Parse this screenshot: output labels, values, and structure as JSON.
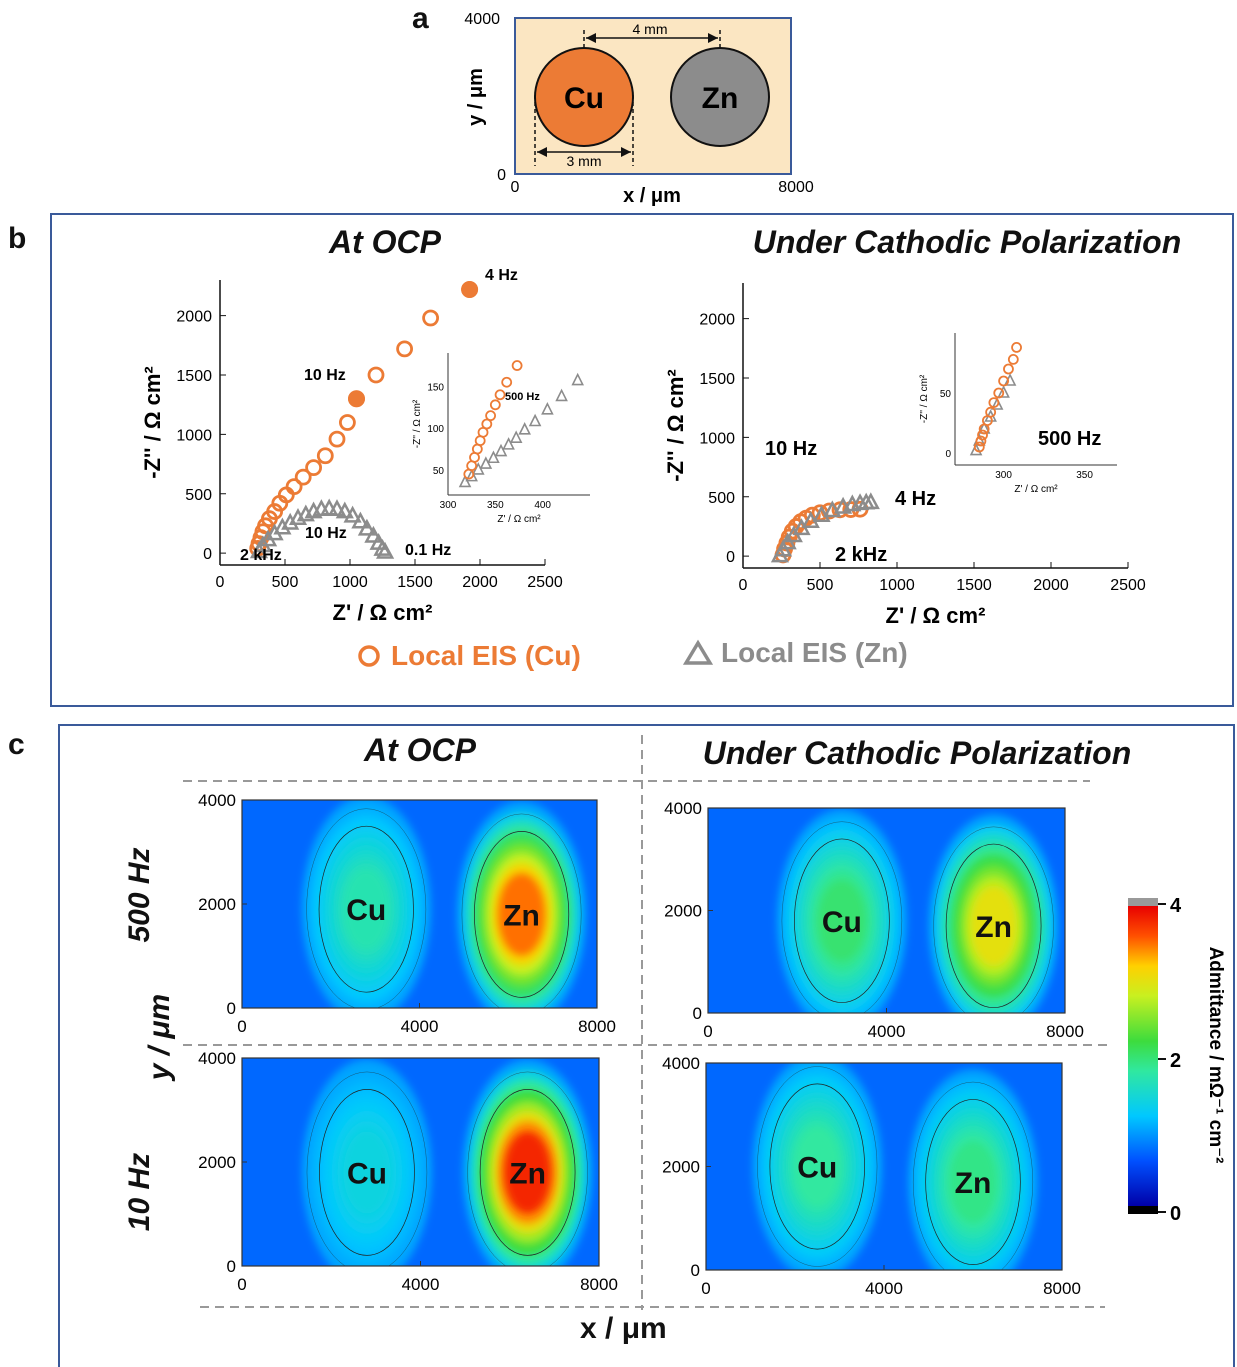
{
  "colors": {
    "cu": "#ec7b35",
    "zn": "#8c8c8c",
    "frame": "#3a5a9a",
    "schem_bg": "#fbe6c2"
  },
  "panel_a": {
    "letter": "a",
    "xlabel": "x / μm",
    "ylabel": "y / μm",
    "x_ticks": [
      "0",
      "8000"
    ],
    "y_ticks": [
      "0",
      "4000"
    ],
    "cu_label": "Cu",
    "zn_label": "Zn",
    "spacing_label": "4 mm",
    "diameter_label": "3 mm"
  },
  "panel_b": {
    "letter": "b",
    "left_title": "At OCP",
    "right_title": "Under Cathodic Polarization",
    "legend": [
      {
        "marker": "circle",
        "label": "Local EIS (Cu)"
      },
      {
        "marker": "triangle",
        "label": "Local EIS (Zn)"
      }
    ]
  },
  "panel_c": {
    "letter": "c",
    "left_title": "At OCP",
    "right_title": "Under Cathodic Polarization",
    "row_labels": [
      "500 Hz",
      "10 Hz"
    ],
    "ylabel": "y / μm",
    "xlabel": "x / μm",
    "colorbar_label": "Admittance / mΩ⁻¹ cm⁻²",
    "colorbar_ticks": [
      "4",
      "2",
      "0"
    ],
    "map_x_ticks": [
      "0",
      "4000",
      "8000"
    ],
    "map_y_ticks": [
      "0",
      "2000",
      "4000"
    ],
    "cu_label": "Cu",
    "zn_label": "Zn"
  },
  "chart_data": [
    {
      "type": "scatter",
      "panel": "b-left",
      "title": "At OCP",
      "xlabel": "Z' / Ω cm²",
      "ylabel": "-Z'' / Ω cm²",
      "xlim": [
        0,
        2500
      ],
      "ylim": [
        -100,
        2300
      ],
      "x_ticks": [
        0,
        500,
        1000,
        1500,
        2000,
        2500
      ],
      "y_ticks": [
        0,
        500,
        1000,
        1500,
        2000
      ],
      "series": [
        {
          "name": "Local EIS (Cu)",
          "marker": "circle",
          "x": [
            290,
            300,
            315,
            330,
            350,
            380,
            420,
            460,
            510,
            570,
            640,
            720,
            810,
            900,
            980,
            1050,
            1200,
            1420,
            1620,
            1920
          ],
          "y": [
            40,
            80,
            130,
            180,
            230,
            290,
            350,
            420,
            490,
            560,
            640,
            720,
            820,
            960,
            1100,
            1300,
            1500,
            1720,
            1980,
            2220
          ]
        },
        {
          "name": "Local EIS (Zn)",
          "marker": "triangle",
          "x": [
            300,
            330,
            370,
            420,
            480,
            540,
            600,
            660,
            720,
            780,
            840,
            900,
            960,
            1020,
            1080,
            1130,
            1180,
            1220,
            1250,
            1270
          ],
          "y": [
            10,
            60,
            110,
            160,
            210,
            250,
            290,
            320,
            345,
            365,
            370,
            365,
            345,
            310,
            260,
            200,
            140,
            80,
            30,
            5
          ]
        }
      ],
      "annotations": [
        "4 Hz",
        "10 Hz",
        "10 Hz",
        "2 kHz",
        "0.1 Hz"
      ],
      "highlight_points": [
        {
          "x": 1920,
          "y": 2220,
          "label": "4 Hz"
        },
        {
          "x": 1050,
          "y": 1300,
          "label": "10 Hz"
        }
      ],
      "inset": {
        "xlabel": "Z' / Ω cm²",
        "ylabel": "-Z'' / Ω cm²",
        "xlim": [
          300,
          450
        ],
        "ylim": [
          20,
          190
        ],
        "x_ticks": [
          300,
          350,
          400
        ],
        "y_ticks": [
          50,
          100,
          150
        ],
        "annotation": "500 Hz",
        "cu": {
          "x": [
            322,
            325,
            328,
            331,
            334,
            337,
            341,
            345,
            350,
            355,
            362,
            373
          ],
          "y": [
            45,
            55,
            65,
            75,
            85,
            95,
            105,
            115,
            128,
            140,
            155,
            175
          ]
        },
        "zn": {
          "x": [
            318,
            325,
            332,
            340,
            348,
            356,
            364,
            372,
            381,
            392,
            405,
            420,
            437
          ],
          "y": [
            35,
            42,
            50,
            57,
            64,
            72,
            80,
            88,
            98,
            108,
            122,
            138,
            157
          ]
        }
      }
    },
    {
      "type": "scatter",
      "panel": "b-right",
      "title": "Under Cathodic Polarization",
      "xlabel": "Z' / Ω cm²",
      "ylabel": "-Z'' / Ω cm²",
      "xlim": [
        0,
        2500
      ],
      "ylim": [
        -100,
        2300
      ],
      "x_ticks": [
        0,
        500,
        1000,
        1500,
        2000,
        2500
      ],
      "y_ticks": [
        0,
        500,
        1000,
        1500,
        2000
      ],
      "series": [
        {
          "name": "Local EIS (Cu)",
          "marker": "circle",
          "x": [
            260,
            270,
            285,
            300,
            320,
            345,
            375,
            410,
            450,
            500,
            560,
            630,
            700,
            760
          ],
          "y": [
            10,
            60,
            110,
            160,
            210,
            250,
            290,
            320,
            345,
            365,
            380,
            390,
            392,
            395
          ]
        },
        {
          "name": "Local EIS (Zn)",
          "marker": "triangle",
          "x": [
            240,
            260,
            290,
            330,
            380,
            440,
            510,
            580,
            650,
            710,
            760,
            800,
            830
          ],
          "y": [
            0,
            50,
            110,
            170,
            230,
            290,
            340,
            380,
            410,
            430,
            440,
            445,
            448
          ]
        }
      ],
      "annotations": [
        "10 Hz",
        "4 Hz",
        "2 kHz"
      ],
      "inset": {
        "xlabel": "Z' / Ω cm²",
        "ylabel": "-Z'' / Ω cm²",
        "xlim": [
          270,
          370
        ],
        "ylim": [
          -10,
          100
        ],
        "x_ticks": [
          300,
          350
        ],
        "y_ticks": [
          0,
          50
        ],
        "annotation": "500 Hz",
        "cu": {
          "x": [
            285,
            286,
            287,
            288,
            290,
            292,
            294,
            297,
            300,
            303,
            306,
            308
          ],
          "y": [
            5,
            10,
            15,
            20,
            27,
            34,
            42,
            50,
            60,
            70,
            78,
            88
          ]
        },
        "zn": {
          "x": [
            283,
            285,
            288,
            292,
            296,
            300,
            304
          ],
          "y": [
            2,
            10,
            20,
            30,
            40,
            50,
            60
          ]
        }
      }
    },
    {
      "type": "heatmap",
      "panel": "c",
      "xlabel": "x / μm",
      "ylabel": "y / μm",
      "xlim": [
        0,
        8000
      ],
      "ylim": [
        0,
        4000
      ],
      "colorbar": {
        "label": "Admittance / mΩ⁻¹ cm⁻²",
        "range": [
          0,
          4
        ],
        "ticks": [
          0,
          2,
          4
        ]
      },
      "maps": [
        {
          "condition": "At OCP",
          "frequency": "500 Hz",
          "peaks": [
            {
              "label": "Cu",
              "x": 2800,
              "y": 1900,
              "value": 1.7
            },
            {
              "label": "Zn",
              "x": 6300,
              "y": 1800,
              "value": 3.5
            }
          ]
        },
        {
          "condition": "Under Cathodic Polarization",
          "frequency": "500 Hz",
          "peaks": [
            {
              "label": "Cu",
              "x": 3000,
              "y": 1800,
              "value": 2.0
            },
            {
              "label": "Zn",
              "x": 6400,
              "y": 1700,
              "value": 3.0
            }
          ]
        },
        {
          "condition": "At OCP",
          "frequency": "10 Hz",
          "peaks": [
            {
              "label": "Cu",
              "x": 2800,
              "y": 1800,
              "value": 1.4
            },
            {
              "label": "Zn",
              "x": 6400,
              "y": 1800,
              "value": 3.8
            }
          ]
        },
        {
          "condition": "Under Cathodic Polarization",
          "frequency": "10 Hz",
          "peaks": [
            {
              "label": "Cu",
              "x": 2500,
              "y": 2000,
              "value": 1.8
            },
            {
              "label": "Zn",
              "x": 6000,
              "y": 1700,
              "value": 1.9
            }
          ]
        }
      ]
    }
  ]
}
